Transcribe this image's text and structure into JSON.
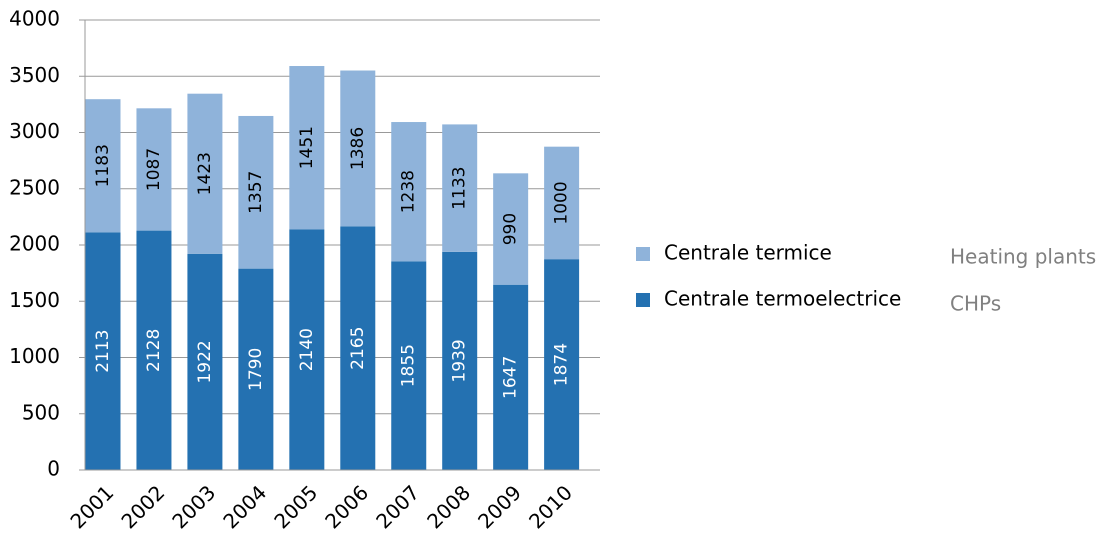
{
  "chart_data": {
    "type": "stacked_bar",
    "categories": [
      "2001",
      "2002",
      "2003",
      "2004",
      "2005",
      "2006",
      "2007",
      "2008",
      "2009",
      "2010"
    ],
    "series": [
      {
        "name": "Centrale termoelectrice",
        "color": "#2471b1",
        "label_color": "#ffffff",
        "values": [
          2113,
          2128,
          1922,
          1790,
          2140,
          2165,
          1855,
          1939,
          1647,
          1874
        ]
      },
      {
        "name": "Centrale termice",
        "color": "#8fb3da",
        "label_color": "#000000",
        "values": [
          1183,
          1087,
          1423,
          1357,
          1451,
          1386,
          1238,
          1133,
          990,
          1000
        ]
      }
    ],
    "ylim": [
      0,
      4000
    ],
    "yticks": [
      0,
      500,
      1000,
      1500,
      2000,
      2500,
      3000,
      3500,
      4000
    ],
    "grid": true,
    "annotations": [
      "Heating plants",
      "CHPs"
    ]
  }
}
